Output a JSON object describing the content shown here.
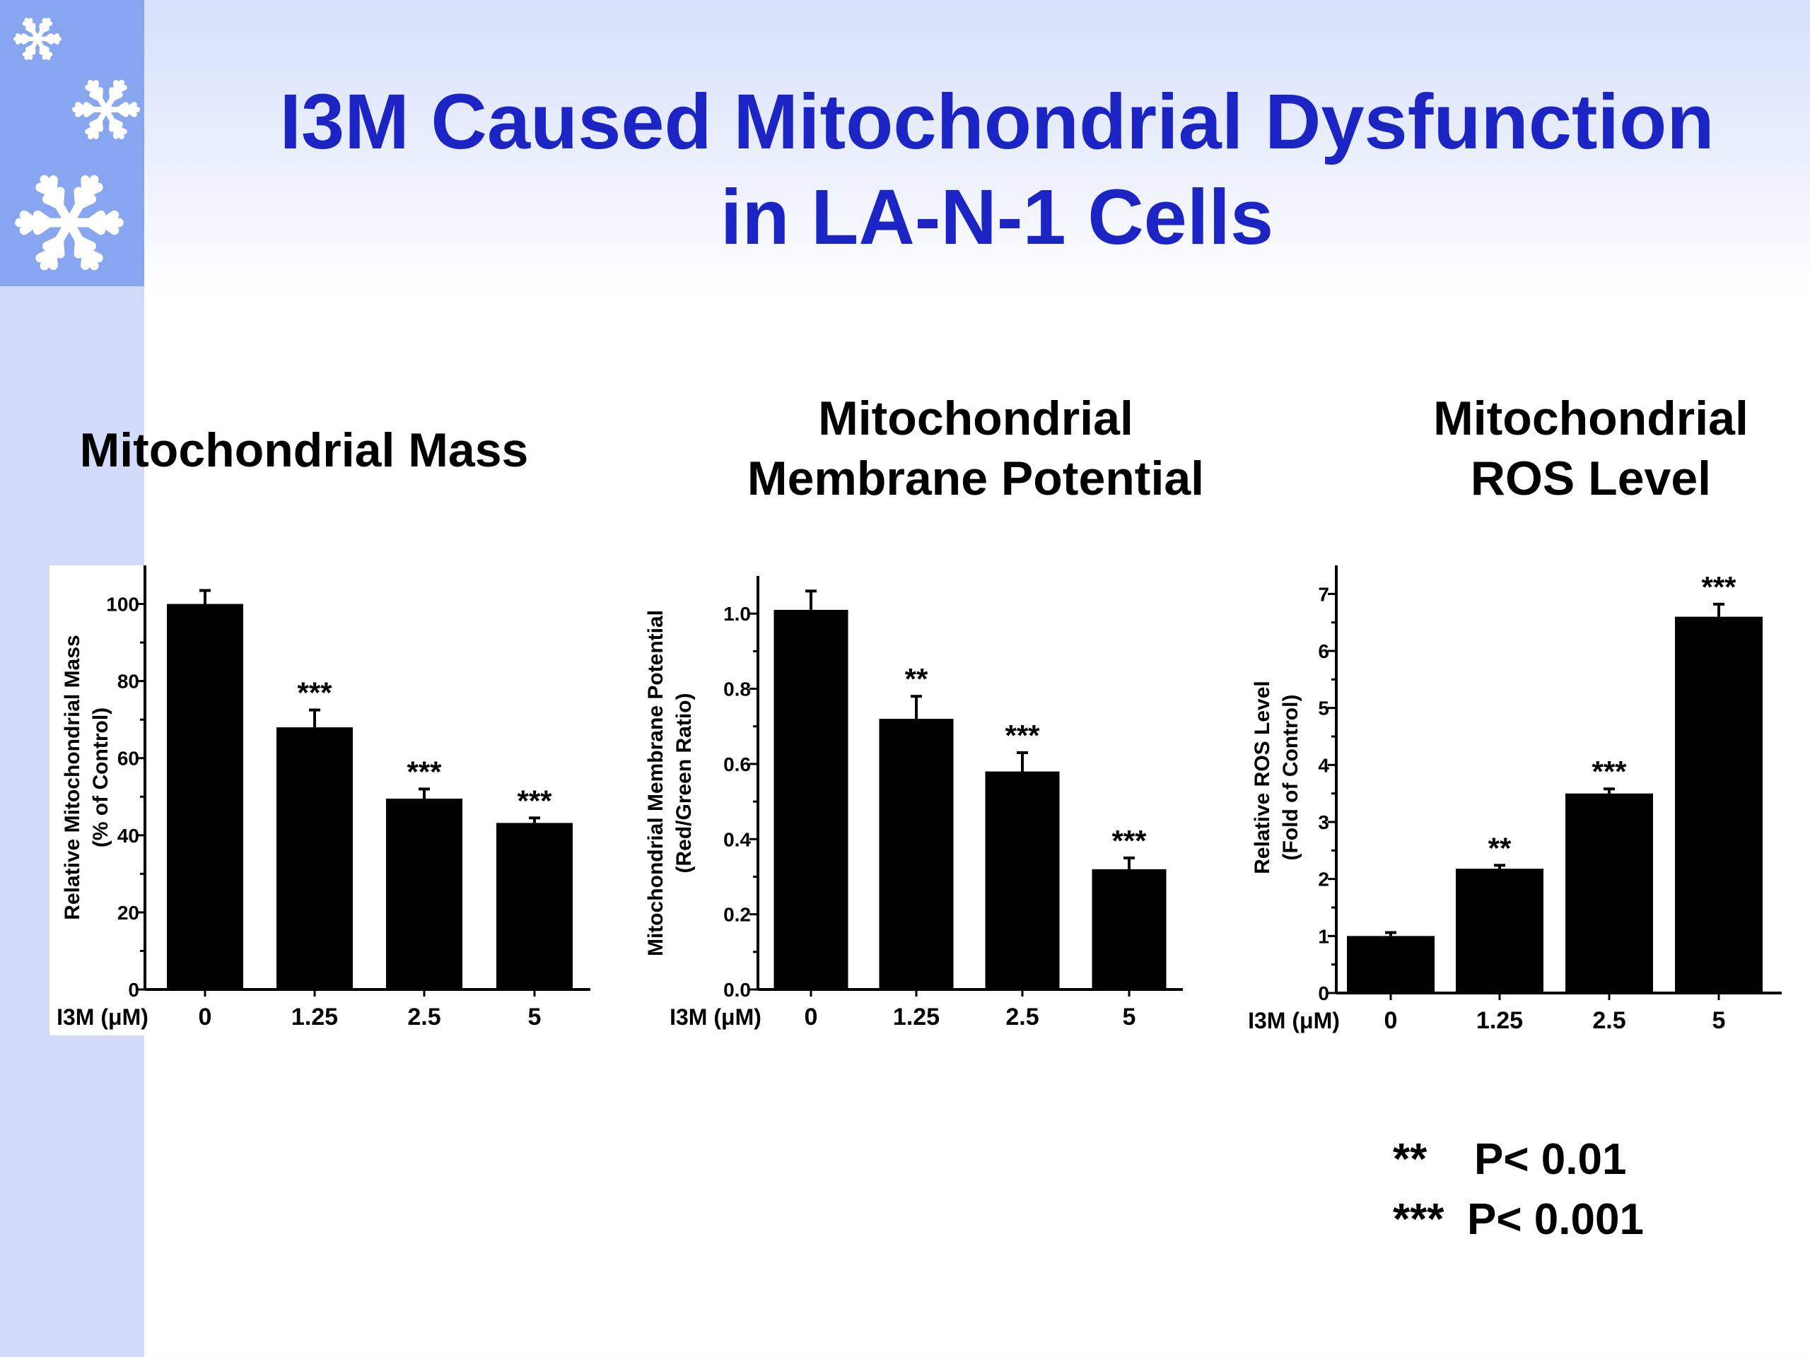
{
  "title": {
    "line1": "I3M Caused Mitochondrial Dysfunction",
    "line2": "in LA-N-1 Cells"
  },
  "panels": [
    {
      "line1": "Mitochondrial Mass",
      "line2": ""
    },
    {
      "line1": "Mitochondrial",
      "line2": "Membrane Potential"
    },
    {
      "line1": "Mitochondrial",
      "line2": "ROS Level"
    }
  ],
  "legend": [
    {
      "symbol": "**",
      "text": "P< 0.01"
    },
    {
      "symbol": "***",
      "text": "P< 0.001"
    }
  ],
  "colors": {
    "title": "#1c25c4",
    "bars": "#000000",
    "side_strip": "#d2dcfa",
    "side_block": "#88a6ef"
  },
  "icons": [
    "snowflake-icon",
    "snowflake-icon",
    "snowflake-icon"
  ],
  "chart_data": [
    {
      "type": "bar",
      "categories": [
        "0",
        "1.25",
        "2.5",
        "5"
      ],
      "category_prefix": "I3M (μM)",
      "values": [
        100,
        68,
        49.5,
        43.2
      ],
      "errors": [
        3.5,
        4.5,
        2.5,
        1.3
      ],
      "significance": [
        "",
        "***",
        "***",
        "***"
      ],
      "ylabel_line1": "Relative Mitochondrial Mass",
      "ylabel_line2": "(% of Control)",
      "ylim": [
        0,
        110
      ],
      "yticks": [
        0,
        20,
        40,
        60,
        80,
        100
      ],
      "ytick_labels": [
        "0",
        "20",
        "40",
        "60",
        "80",
        "100"
      ]
    },
    {
      "type": "bar",
      "categories": [
        "0",
        "1.25",
        "2.5",
        "5"
      ],
      "category_prefix": "I3M (μM)",
      "values": [
        1.01,
        0.72,
        0.58,
        0.32
      ],
      "errors": [
        0.05,
        0.06,
        0.05,
        0.03
      ],
      "significance": [
        "",
        "**",
        "***",
        "***"
      ],
      "ylabel_line1": "Mitochondrial Membrane Potential",
      "ylabel_line2": "(Red/Green Ratio)",
      "ylim": [
        0,
        1.1
      ],
      "yticks": [
        0,
        0.2,
        0.4,
        0.6,
        0.8,
        1.0
      ],
      "ytick_labels": [
        "0.0",
        "0.2",
        "0.4",
        "0.6",
        "0.8",
        "1.0"
      ]
    },
    {
      "type": "bar",
      "categories": [
        "0",
        "1.25",
        "2.5",
        "5"
      ],
      "category_prefix": "I3M (μM)",
      "values": [
        1.0,
        2.18,
        3.5,
        6.6
      ],
      "errors": [
        0.06,
        0.06,
        0.08,
        0.22
      ],
      "significance": [
        "",
        "**",
        "***",
        "***"
      ],
      "ylabel_line1": "Relative ROS Level",
      "ylabel_line2": "(Fold of Control)",
      "ylim": [
        0,
        7.5
      ],
      "yticks": [
        0,
        1,
        2,
        3,
        4,
        5,
        6,
        7
      ],
      "ytick_labels": [
        "0",
        "1",
        "2",
        "3",
        "4",
        "5",
        "6",
        "7"
      ]
    }
  ]
}
